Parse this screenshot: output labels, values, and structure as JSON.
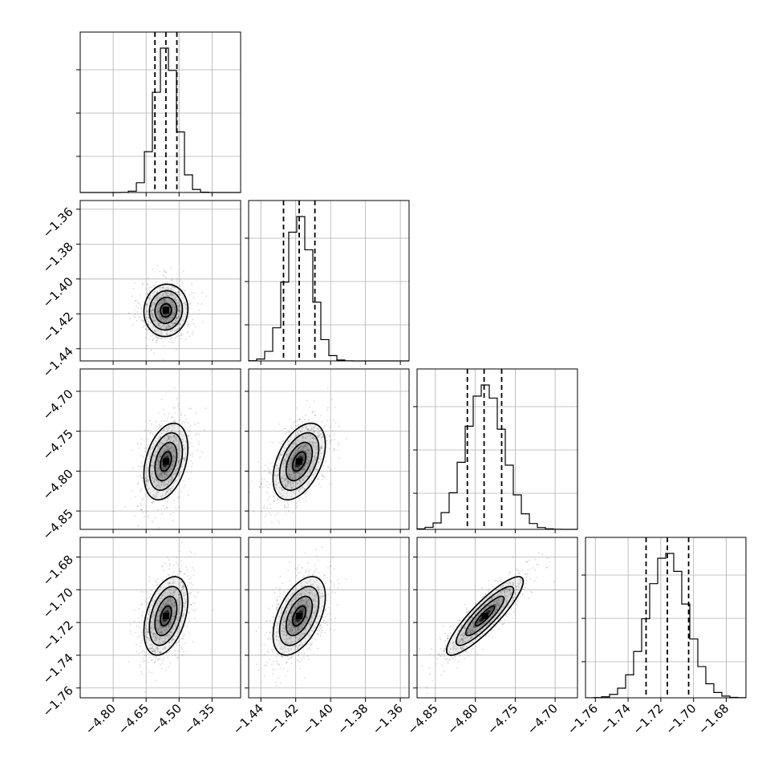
{
  "chart_data": {
    "type": "corner",
    "parameters": [
      {
        "index": 0,
        "mean": -4.56,
        "std": 0.05,
        "range": [
          -4.95,
          -4.22
        ],
        "quantiles": [
          -4.61,
          -4.56,
          -4.51
        ],
        "ticks": [
          -4.8,
          -4.65,
          -4.5,
          -4.35
        ],
        "tick_labels": [
          "−4.80",
          "−4.65",
          "−4.50",
          "−4.35"
        ]
      },
      {
        "index": 1,
        "mean": -1.418,
        "std": 0.0075,
        "range": [
          -1.447,
          -1.355
        ],
        "quantiles": [
          -1.427,
          -1.418,
          -1.409
        ],
        "ticks": [
          -1.44,
          -1.42,
          -1.4,
          -1.38,
          -1.36
        ],
        "tick_labels": [
          "−1.44",
          "−1.42",
          "−1.40",
          "−1.38",
          "−1.36"
        ]
      },
      {
        "index": 2,
        "mean": -4.788,
        "std": 0.024,
        "range": [
          -4.873,
          -4.672
        ],
        "quantiles": [
          -4.81,
          -4.789,
          -4.767
        ],
        "ticks": [
          -4.85,
          -4.8,
          -4.75,
          -4.7
        ],
        "tick_labels": [
          "−4.85",
          "−4.80",
          "−4.75",
          "−4.70"
        ]
      },
      {
        "index": 3,
        "mean": -1.716,
        "std": 0.012,
        "range": [
          -1.766,
          -1.668
        ],
        "quantiles": [
          -1.729,
          -1.716,
          -1.703
        ],
        "ticks": [
          -1.76,
          -1.74,
          -1.72,
          -1.7,
          -1.68
        ],
        "tick_labels": [
          "−1.76",
          "−1.74",
          "−1.72",
          "−1.70",
          "−1.68"
        ]
      }
    ],
    "correlations": {
      "1-0": 0.05,
      "2-0": 0.35,
      "2-1": 0.45,
      "3-0": 0.4,
      "3-1": 0.5,
      "3-2": 0.88
    },
    "histogram_bins": 20,
    "contour_levels_sigma": [
      0.5,
      1.0,
      1.5,
      2.0
    ],
    "grid": true,
    "colors": {
      "marks": "#000000",
      "grid": "#b0b0b0"
    }
  }
}
